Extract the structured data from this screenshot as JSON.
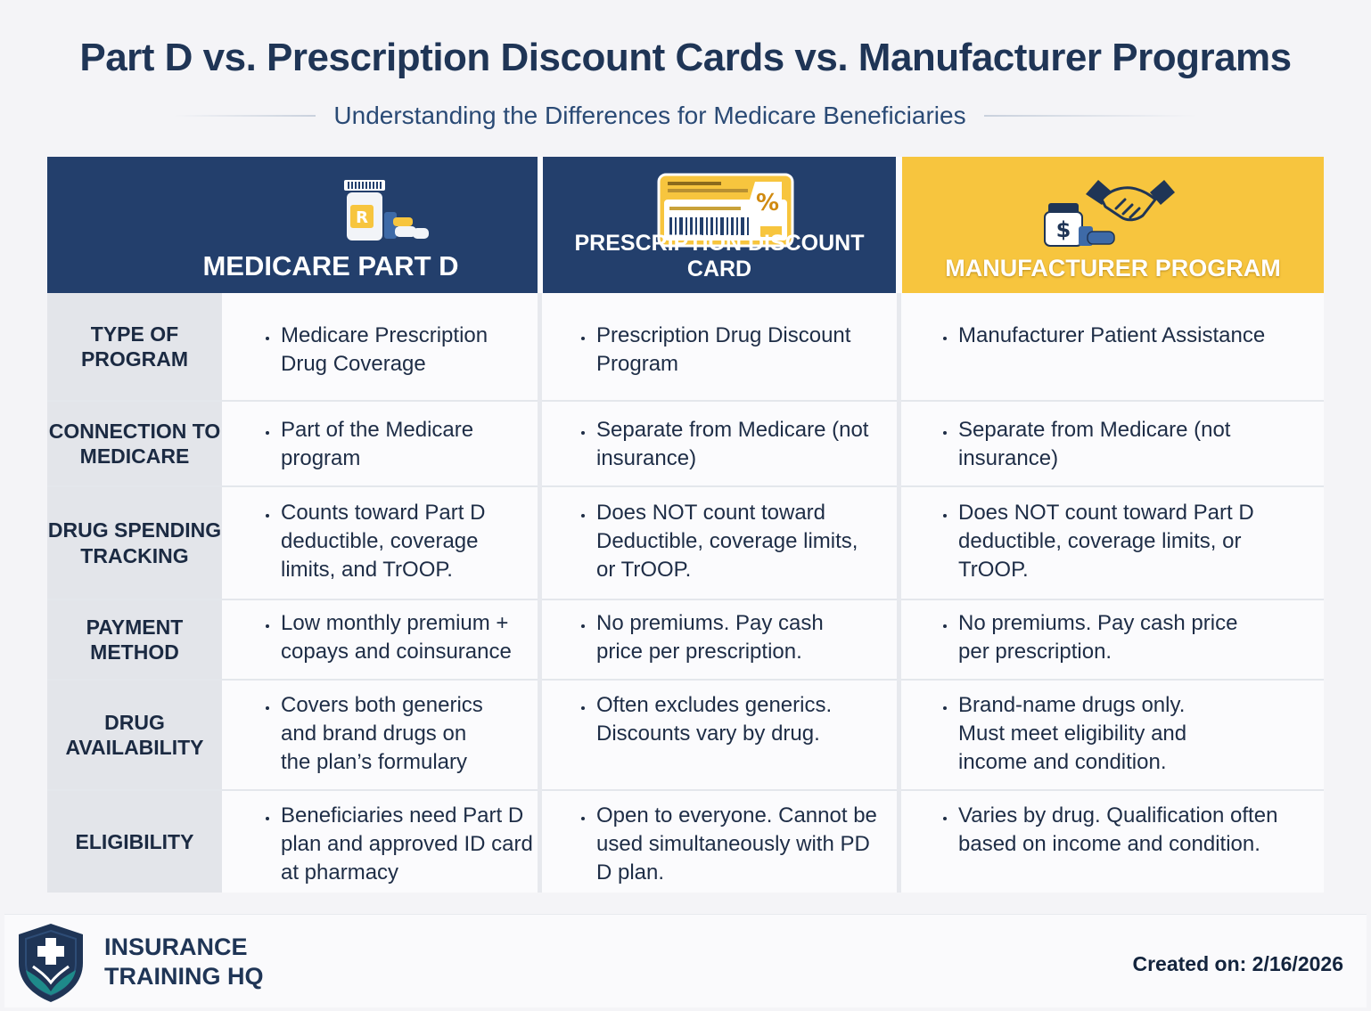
{
  "title": "Part D vs. Prescription Discount Cards vs. Manufacturer Programs",
  "subtitle": "Understanding the Differences for Medicare Beneficiaries",
  "columns": {
    "partd": {
      "label": "MEDICARE PART D",
      "icon": "prescription-bottle-icon"
    },
    "discount": {
      "label": "PRESCRIPTION DISCOUNT CARD",
      "icon": "discount-card-icon",
      "icon_symbol": "%"
    },
    "manufacturer": {
      "label": "MANUFACTURER PROGRAM",
      "icon": "handshake-icon",
      "icon_symbol": "$"
    }
  },
  "rows": [
    {
      "label": "TYPE OF PROGRAM",
      "partd": "Medicare Prescription Drug Coverage",
      "discount": "Prescription Drug Discount Program",
      "manufacturer": "Manufacturer Patient Assistance"
    },
    {
      "label": "CONNECTION TO MEDICARE",
      "partd": "Part of the Medicare program",
      "discount": "Separate from Medicare (not insurance)",
      "manufacturer": "Separate from Medicare (not insurance)"
    },
    {
      "label": "DRUG SPENDING TRACKING",
      "partd": "Counts toward Part D deductible, coverage limits, and TrOOP.",
      "discount": "Does NOT count toward Deductible, coverage limits, or TrOOP.",
      "manufacturer": "Does NOT count toward Part D deductible, coverage limits, or TrOOP."
    },
    {
      "label": "PAYMENT METHOD",
      "partd": "Low monthly premium + copays and coinsurance",
      "discount": "No premiums. Pay cash price per prescription.",
      "manufacturer": "No premiums. Pay cash price per prescription."
    },
    {
      "label": "DRUG AVAILABILITY",
      "partd": "Covers both generics and brand drugs on the plan’s formulary",
      "discount": "Often excludes generics. Discounts vary by drug.",
      "manufacturer": "Brand-name drugs only. Must meet eligibility and income and condition."
    },
    {
      "label": "ELIGIBILITY",
      "partd": "Beneficiaries need Part D plan and approved ID card at pharmacy",
      "discount": "Open to everyone. Cannot be used simultaneously with PD D plan.",
      "manufacturer": "Varies by drug. Qualification often based on income and condition."
    }
  ],
  "footer": {
    "brand_line1": "INSURANCE",
    "brand_line2": "TRAINING HQ",
    "created": "Created on: 2/16/2026"
  },
  "colors": {
    "navy": "#233f6c",
    "gold": "#f7c53e",
    "teal": "#1e8a8a"
  }
}
